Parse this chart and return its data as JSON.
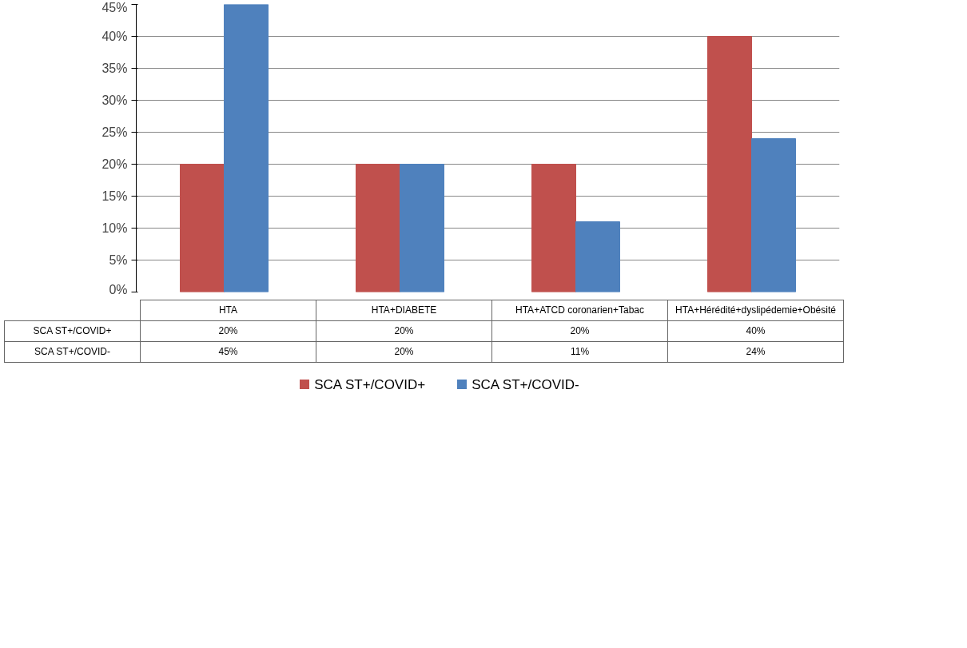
{
  "chart_data": {
    "type": "bar",
    "categories": [
      "HTA",
      "HTA+DIABETE",
      "HTA+ATCD coronarien+Tabac",
      "HTA+Hérédité+dyslipédemie+Obésité"
    ],
    "series": [
      {
        "name": "SCA ST+/COVID+",
        "color": "#c0504d",
        "values": [
          20,
          20,
          20,
          40
        ],
        "value_labels": [
          "20%",
          "20%",
          "20%",
          "40%"
        ]
      },
      {
        "name": "SCA ST+/COVID-",
        "color": "#4f81bd",
        "values": [
          45,
          20,
          11,
          24
        ],
        "value_labels": [
          "45%",
          "20%",
          "11%",
          "24%"
        ]
      }
    ],
    "ylim": [
      0,
      45
    ],
    "yticks": [
      {
        "value": 0,
        "label": "0%"
      },
      {
        "value": 5,
        "label": "5%"
      },
      {
        "value": 10,
        "label": "10%"
      },
      {
        "value": 15,
        "label": "15%"
      },
      {
        "value": 20,
        "label": "20%"
      },
      {
        "value": 25,
        "label": "25%"
      },
      {
        "value": 30,
        "label": "30%"
      },
      {
        "value": 35,
        "label": "35%"
      },
      {
        "value": 40,
        "label": "40%"
      },
      {
        "value": 45,
        "label": "45%"
      }
    ],
    "grid": "y",
    "legend": "bottom"
  }
}
